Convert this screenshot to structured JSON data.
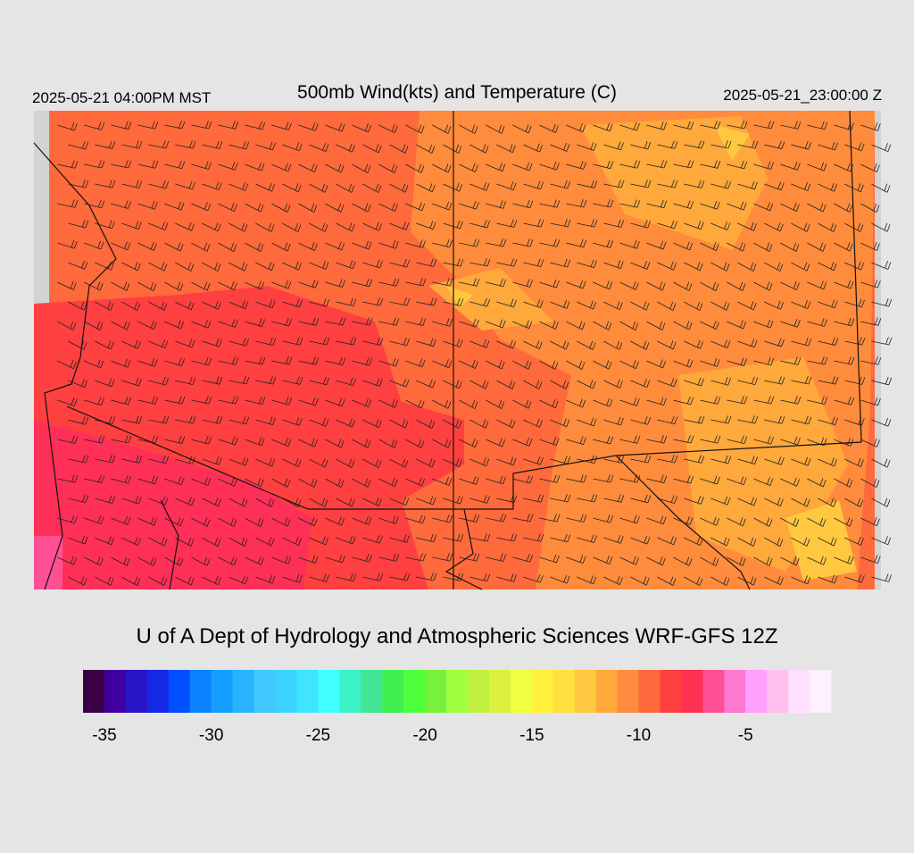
{
  "header": {
    "local_time": "2025-05-21 04:00PM MST",
    "title": "500mb Wind(kts) and Temperature (C)",
    "valid_time": "2025-05-21_23:00:00 Z"
  },
  "credit": "U of A Dept of Hydrology and Atmospheric Sciences WRF-GFS 12Z",
  "colorbar": {
    "bins": [
      -36,
      -35,
      -34,
      -33,
      -32,
      -31,
      -30,
      -29,
      -28,
      -27,
      -26,
      -25,
      -24,
      -23,
      -22,
      -21,
      -20,
      -19,
      -18,
      -17,
      -16,
      -15,
      -14,
      -13,
      -12,
      -11,
      -10,
      -9,
      -8,
      -7,
      -6,
      -5,
      -4,
      -3,
      -2,
      -1
    ],
    "colors": [
      "#3a0046",
      "#4000a0",
      "#2a14c8",
      "#1428e6",
      "#0050ff",
      "#0a82ff",
      "#14a0ff",
      "#2ab4ff",
      "#40c8ff",
      "#3cd4ff",
      "#40e4ff",
      "#40ffff",
      "#3cf0c8",
      "#40e696",
      "#40f050",
      "#50ff3c",
      "#78f03c",
      "#a0ff40",
      "#c0f040",
      "#dcf040",
      "#f0ff40",
      "#fff03c",
      "#ffe040",
      "#ffc840",
      "#ffa83c",
      "#ff8c3c",
      "#ff6a3c",
      "#ff4040",
      "#ff3050",
      "#ff5096",
      "#ff78d0",
      "#ffa0ff",
      "#ffc0f0",
      "#ffe0ff",
      "#fff0ff"
    ],
    "ticks": [
      -35,
      -30,
      -25,
      -20,
      -15,
      -10,
      -5
    ]
  }
}
